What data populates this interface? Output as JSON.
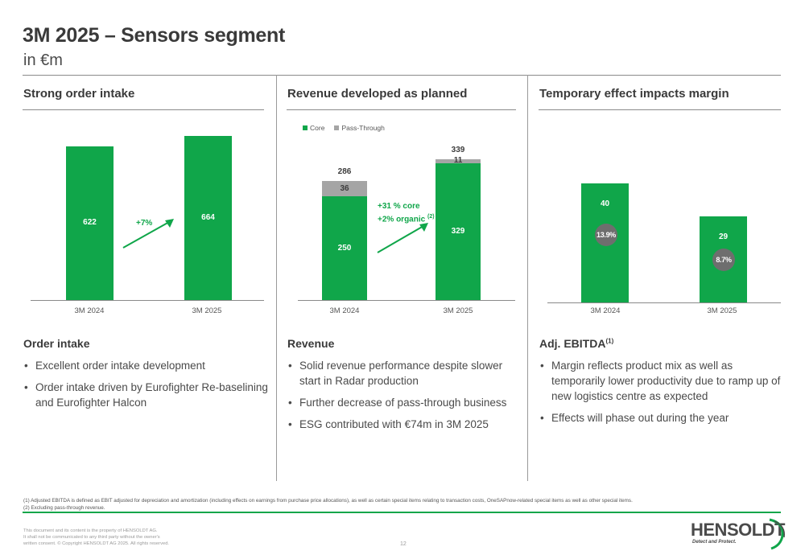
{
  "header": {
    "title": "3M 2025 – Sensors segment",
    "subtitle": "in €m"
  },
  "columns": [
    {
      "title": "Strong order intake"
    },
    {
      "title": "Revenue developed as planned"
    },
    {
      "title": "Temporary effect impacts margin"
    }
  ],
  "legend": {
    "core": "Core",
    "pass_through": "Pass-Through"
  },
  "colors": {
    "green": "#10a64a",
    "grey": "#a5a5a5",
    "dark_grey": "#6e6e6e"
  },
  "chart_data": [
    {
      "type": "bar",
      "title": "Strong order intake",
      "categories": [
        "3M 2024",
        "3M 2025"
      ],
      "values": [
        622,
        664
      ],
      "labels": [
        "622",
        "664"
      ],
      "annotation": "+7%",
      "ylim": [
        0,
        700
      ]
    },
    {
      "type": "bar",
      "stacked": true,
      "title": "Revenue developed as planned",
      "categories": [
        "3M 2024",
        "3M 2025"
      ],
      "series": [
        {
          "name": "Core",
          "values": [
            250,
            329
          ],
          "labels": [
            "250",
            "329"
          ]
        },
        {
          "name": "Pass-Through",
          "values": [
            36,
            11
          ],
          "labels": [
            "36",
            "11"
          ]
        }
      ],
      "totals": [
        286,
        339
      ],
      "total_labels": [
        "286",
        "339"
      ],
      "annotation_line1": "+31 % core",
      "annotation_line2": "+2% organic",
      "annotation_sup": "(2)",
      "legend": "top-left",
      "ylim": [
        0,
        380
      ]
    },
    {
      "type": "bar",
      "title": "Temporary effect impacts margin",
      "categories": [
        "3M 2024",
        "3M 2025"
      ],
      "values": [
        40,
        29
      ],
      "labels": [
        "40",
        "29"
      ],
      "margins": [
        "13.9%",
        "8.7%"
      ],
      "ylim": [
        0,
        55
      ]
    }
  ],
  "sections": {
    "order_intake": {
      "heading": "Order intake",
      "bullets": [
        "Excellent order intake development",
        "Order intake driven by Eurofighter Re-baselining and Eurofighter Halcon"
      ]
    },
    "revenue": {
      "heading": "Revenue",
      "bullets": [
        "Solid revenue performance despite slower start in Radar production",
        "Further decrease of pass-through business",
        "ESG contributed with €74m in 3M 2025"
      ]
    },
    "ebitda": {
      "heading": "Adj. EBITDA",
      "heading_sup": "(1)",
      "bullets": [
        "Margin reflects product mix as well as temporarily lower productivity due to ramp up of new logistics centre as expected",
        "Effects will phase out during the year"
      ]
    }
  },
  "footnotes": [
    "(1) Adjusted EBITDA is defined as EBIT adjusted for depreciation and amortization (including effects on earnings from purchase price allocations), as well as certain special items relating to transaction costs, OneSAPnow-related special items as well as other special items.",
    "(2) Excluding pass-through revenue."
  ],
  "disclaimer": [
    "This document and its content is the property of HENSOLDT AG.",
    "It shall not be communicated to any third party without the owner's",
    "written consent. © Copyright HENSOLDT AG 2025. All rights reserved."
  ],
  "page_number": "12",
  "logo": {
    "name": "HENSOLDT",
    "tagline": "Detect and Protect."
  }
}
